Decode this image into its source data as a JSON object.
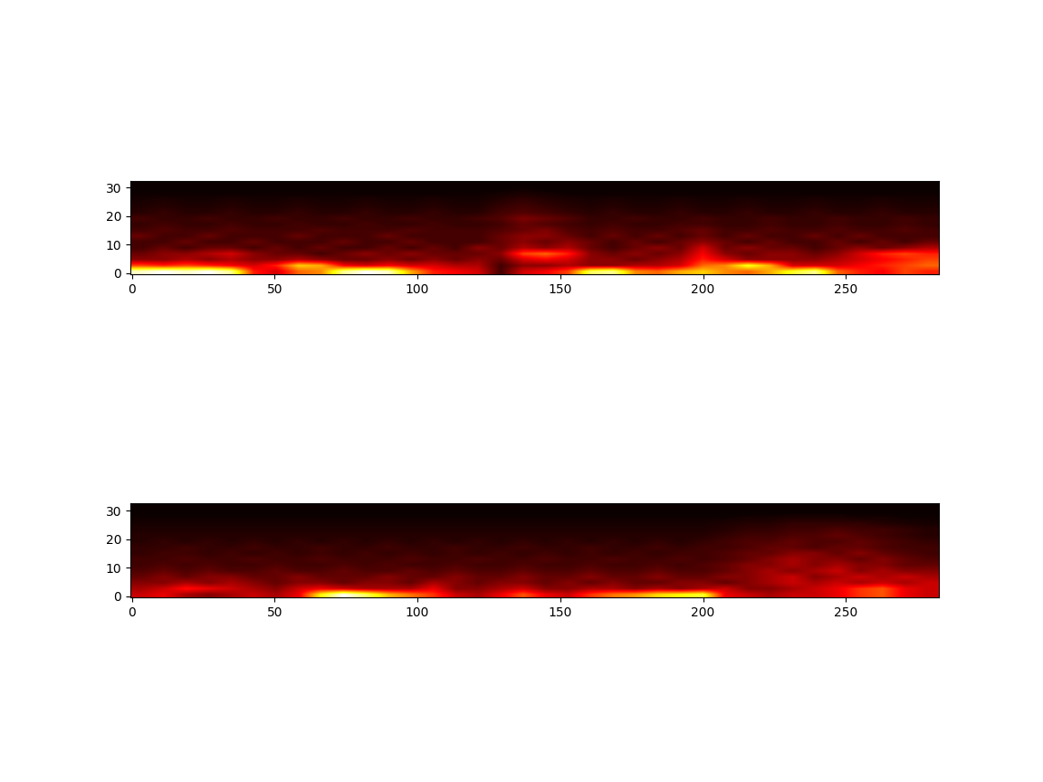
{
  "chart_data": [
    {
      "type": "heatmap",
      "color": "hot",
      "xlim": [
        -0.5,
        282.5
      ],
      "ylim": [
        -0.5,
        32.5
      ],
      "xticks": [
        0,
        50,
        100,
        150,
        200,
        250
      ],
      "yticks": [
        0,
        10,
        20,
        30
      ],
      "cells": [
        [
          0.9,
          0.95,
          0.9,
          0.95,
          0.85,
          0.4,
          0.3,
          0.5,
          0.55,
          0.85,
          0.95,
          0.9,
          0.6,
          0.4,
          0.35,
          0.3,
          0.1,
          0.3,
          0.35,
          0.45,
          0.8,
          0.85,
          0.55,
          0.5,
          0.6,
          0.65,
          0.55,
          0.5,
          0.6,
          0.75,
          0.85,
          0.5,
          0.4,
          0.35,
          0.45,
          0.4
        ],
        [
          0.45,
          0.4,
          0.45,
          0.4,
          0.35,
          0.3,
          0.4,
          0.65,
          0.6,
          0.35,
          0.3,
          0.35,
          0.3,
          0.3,
          0.25,
          0.25,
          0.1,
          0.2,
          0.2,
          0.25,
          0.2,
          0.2,
          0.25,
          0.25,
          0.3,
          0.5,
          0.55,
          0.75,
          0.6,
          0.3,
          0.3,
          0.3,
          0.35,
          0.4,
          0.45,
          0.5
        ],
        [
          0.2,
          0.2,
          0.25,
          0.2,
          0.25,
          0.2,
          0.2,
          0.25,
          0.2,
          0.15,
          0.15,
          0.2,
          0.15,
          0.2,
          0.15,
          0.2,
          0.15,
          0.3,
          0.35,
          0.3,
          0.2,
          0.2,
          0.15,
          0.2,
          0.25,
          0.4,
          0.3,
          0.2,
          0.2,
          0.2,
          0.2,
          0.25,
          0.3,
          0.35,
          0.4,
          0.45
        ],
        [
          0.15,
          0.2,
          0.2,
          0.25,
          0.3,
          0.2,
          0.15,
          0.15,
          0.1,
          0.15,
          0.2,
          0.15,
          0.2,
          0.15,
          0.15,
          0.15,
          0.2,
          0.45,
          0.5,
          0.4,
          0.2,
          0.15,
          0.2,
          0.15,
          0.2,
          0.35,
          0.2,
          0.15,
          0.2,
          0.2,
          0.15,
          0.2,
          0.3,
          0.4,
          0.45,
          0.4
        ],
        [
          0.1,
          0.15,
          0.1,
          0.15,
          0.15,
          0.1,
          0.15,
          0.1,
          0.15,
          0.1,
          0.1,
          0.15,
          0.1,
          0.15,
          0.1,
          0.2,
          0.15,
          0.25,
          0.2,
          0.25,
          0.15,
          0.1,
          0.15,
          0.2,
          0.15,
          0.3,
          0.15,
          0.2,
          0.15,
          0.15,
          0.1,
          0.15,
          0.2,
          0.15,
          0.2,
          0.25
        ],
        [
          0.1,
          0.1,
          0.15,
          0.1,
          0.1,
          0.15,
          0.1,
          0.1,
          0.1,
          0.15,
          0.1,
          0.1,
          0.15,
          0.1,
          0.1,
          0.1,
          0.15,
          0.2,
          0.15,
          0.2,
          0.15,
          0.1,
          0.15,
          0.1,
          0.15,
          0.2,
          0.15,
          0.1,
          0.15,
          0.1,
          0.1,
          0.15,
          0.1,
          0.15,
          0.1,
          0.15
        ],
        [
          0.15,
          0.1,
          0.1,
          0.15,
          0.1,
          0.1,
          0.1,
          0.15,
          0.1,
          0.1,
          0.1,
          0.15,
          0.1,
          0.1,
          0.1,
          0.1,
          0.15,
          0.2,
          0.2,
          0.15,
          0.1,
          0.15,
          0.1,
          0.15,
          0.1,
          0.15,
          0.1,
          0.15,
          0.1,
          0.1,
          0.15,
          0.1,
          0.15,
          0.1,
          0.1,
          0.1
        ],
        [
          0.1,
          0.12,
          0.1,
          0.1,
          0.12,
          0.1,
          0.1,
          0.1,
          0.12,
          0.1,
          0.1,
          0.1,
          0.12,
          0.1,
          0.1,
          0.1,
          0.12,
          0.15,
          0.18,
          0.12,
          0.1,
          0.12,
          0.1,
          0.1,
          0.12,
          0.15,
          0.1,
          0.1,
          0.12,
          0.1,
          0.1,
          0.12,
          0.1,
          0.1,
          0.12,
          0.1
        ],
        [
          0.08,
          0.1,
          0.08,
          0.08,
          0.1,
          0.08,
          0.08,
          0.1,
          0.08,
          0.08,
          0.1,
          0.08,
          0.08,
          0.1,
          0.08,
          0.08,
          0.1,
          0.15,
          0.12,
          0.1,
          0.08,
          0.1,
          0.08,
          0.08,
          0.1,
          0.1,
          0.08,
          0.08,
          0.1,
          0.08,
          0.08,
          0.1,
          0.08,
          0.08,
          0.1,
          0.08
        ],
        [
          0.1,
          0.08,
          0.08,
          0.1,
          0.08,
          0.08,
          0.1,
          0.08,
          0.08,
          0.1,
          0.08,
          0.08,
          0.1,
          0.08,
          0.08,
          0.1,
          0.12,
          0.18,
          0.15,
          0.12,
          0.08,
          0.08,
          0.1,
          0.08,
          0.08,
          0.1,
          0.08,
          0.08,
          0.1,
          0.08,
          0.08,
          0.1,
          0.08,
          0.08,
          0.1,
          0.08
        ],
        [
          0.06,
          0.08,
          0.06,
          0.06,
          0.08,
          0.06,
          0.06,
          0.08,
          0.06,
          0.06,
          0.08,
          0.06,
          0.06,
          0.08,
          0.06,
          0.06,
          0.1,
          0.12,
          0.1,
          0.08,
          0.06,
          0.08,
          0.06,
          0.06,
          0.08,
          0.06,
          0.06,
          0.08,
          0.06,
          0.06,
          0.08,
          0.06,
          0.06,
          0.08,
          0.06,
          0.06
        ],
        [
          0.05,
          0.06,
          0.05,
          0.05,
          0.06,
          0.05,
          0.05,
          0.06,
          0.05,
          0.05,
          0.06,
          0.05,
          0.05,
          0.06,
          0.05,
          0.05,
          0.08,
          0.1,
          0.08,
          0.06,
          0.05,
          0.06,
          0.05,
          0.05,
          0.06,
          0.05,
          0.05,
          0.06,
          0.05,
          0.05,
          0.06,
          0.05,
          0.05,
          0.06,
          0.05,
          0.05
        ],
        [
          0.04,
          0.05,
          0.04,
          0.04,
          0.05,
          0.04,
          0.04,
          0.05,
          0.04,
          0.04,
          0.05,
          0.04,
          0.04,
          0.05,
          0.04,
          0.04,
          0.06,
          0.08,
          0.06,
          0.05,
          0.04,
          0.05,
          0.04,
          0.04,
          0.05,
          0.04,
          0.04,
          0.05,
          0.04,
          0.04,
          0.05,
          0.04,
          0.04,
          0.05,
          0.04,
          0.04
        ],
        [
          0.03,
          0.03,
          0.03,
          0.03,
          0.03,
          0.03,
          0.03,
          0.03,
          0.03,
          0.03,
          0.03,
          0.03,
          0.03,
          0.03,
          0.03,
          0.03,
          0.04,
          0.05,
          0.04,
          0.03,
          0.03,
          0.03,
          0.03,
          0.03,
          0.03,
          0.03,
          0.03,
          0.03,
          0.03,
          0.03,
          0.03,
          0.03,
          0.03,
          0.03,
          0.03,
          0.03
        ],
        [
          0.02,
          0.02,
          0.02,
          0.02,
          0.02,
          0.02,
          0.02,
          0.02,
          0.02,
          0.02,
          0.02,
          0.02,
          0.02,
          0.02,
          0.02,
          0.02,
          0.02,
          0.03,
          0.02,
          0.02,
          0.02,
          0.02,
          0.02,
          0.02,
          0.02,
          0.02,
          0.02,
          0.02,
          0.02,
          0.02,
          0.02,
          0.02,
          0.02,
          0.02,
          0.02,
          0.02
        ],
        [
          0.02,
          0.02,
          0.02,
          0.02,
          0.02,
          0.02,
          0.02,
          0.02,
          0.02,
          0.02,
          0.02,
          0.02,
          0.02,
          0.02,
          0.02,
          0.02,
          0.02,
          0.02,
          0.02,
          0.02,
          0.02,
          0.02,
          0.02,
          0.02,
          0.02,
          0.02,
          0.02,
          0.02,
          0.02,
          0.02,
          0.02,
          0.02,
          0.02,
          0.02,
          0.02,
          0.02
        ]
      ]
    },
    {
      "type": "heatmap",
      "color": "hot",
      "xlim": [
        -0.5,
        282.5
      ],
      "ylim": [
        -0.5,
        32.5
      ],
      "xticks": [
        0,
        50,
        100,
        150,
        200,
        250
      ],
      "yticks": [
        0,
        10,
        20,
        30
      ],
      "cells": [
        [
          0.3,
          0.35,
          0.25,
          0.2,
          0.25,
          0.3,
          0.25,
          0.35,
          0.75,
          1.0,
          0.85,
          0.65,
          0.55,
          0.45,
          0.3,
          0.25,
          0.35,
          0.5,
          0.35,
          0.3,
          0.45,
          0.55,
          0.6,
          0.7,
          0.75,
          0.8,
          0.35,
          0.3,
          0.25,
          0.3,
          0.3,
          0.35,
          0.45,
          0.5,
          0.35,
          0.3
        ],
        [
          0.25,
          0.3,
          0.4,
          0.35,
          0.3,
          0.25,
          0.2,
          0.3,
          0.35,
          0.3,
          0.25,
          0.25,
          0.25,
          0.35,
          0.2,
          0.2,
          0.25,
          0.3,
          0.2,
          0.2,
          0.25,
          0.25,
          0.2,
          0.25,
          0.2,
          0.25,
          0.3,
          0.2,
          0.2,
          0.25,
          0.3,
          0.35,
          0.45,
          0.5,
          0.35,
          0.3
        ],
        [
          0.2,
          0.2,
          0.25,
          0.2,
          0.25,
          0.2,
          0.15,
          0.2,
          0.2,
          0.15,
          0.2,
          0.2,
          0.15,
          0.25,
          0.2,
          0.15,
          0.2,
          0.2,
          0.15,
          0.2,
          0.15,
          0.2,
          0.15,
          0.15,
          0.2,
          0.2,
          0.15,
          0.2,
          0.25,
          0.3,
          0.25,
          0.3,
          0.25,
          0.3,
          0.25,
          0.3
        ],
        [
          0.15,
          0.2,
          0.15,
          0.2,
          0.2,
          0.15,
          0.15,
          0.2,
          0.15,
          0.15,
          0.15,
          0.2,
          0.15,
          0.15,
          0.2,
          0.15,
          0.15,
          0.2,
          0.15,
          0.15,
          0.2,
          0.15,
          0.15,
          0.2,
          0.15,
          0.15,
          0.2,
          0.2,
          0.25,
          0.3,
          0.2,
          0.25,
          0.3,
          0.25,
          0.3,
          0.25
        ],
        [
          0.12,
          0.15,
          0.12,
          0.15,
          0.12,
          0.12,
          0.15,
          0.12,
          0.12,
          0.15,
          0.12,
          0.12,
          0.15,
          0.12,
          0.15,
          0.12,
          0.12,
          0.15,
          0.12,
          0.12,
          0.15,
          0.12,
          0.12,
          0.15,
          0.12,
          0.12,
          0.15,
          0.2,
          0.25,
          0.2,
          0.25,
          0.3,
          0.2,
          0.25,
          0.2,
          0.2
        ],
        [
          0.1,
          0.12,
          0.1,
          0.12,
          0.1,
          0.1,
          0.12,
          0.1,
          0.1,
          0.12,
          0.1,
          0.12,
          0.1,
          0.1,
          0.12,
          0.1,
          0.1,
          0.12,
          0.1,
          0.1,
          0.12,
          0.1,
          0.1,
          0.12,
          0.1,
          0.12,
          0.15,
          0.2,
          0.2,
          0.25,
          0.2,
          0.25,
          0.2,
          0.2,
          0.15,
          0.15
        ],
        [
          0.1,
          0.1,
          0.12,
          0.1,
          0.1,
          0.12,
          0.1,
          0.1,
          0.12,
          0.1,
          0.1,
          0.1,
          0.12,
          0.1,
          0.1,
          0.12,
          0.1,
          0.1,
          0.12,
          0.1,
          0.1,
          0.12,
          0.1,
          0.1,
          0.12,
          0.1,
          0.12,
          0.15,
          0.2,
          0.25,
          0.2,
          0.2,
          0.15,
          0.2,
          0.15,
          0.12
        ],
        [
          0.08,
          0.1,
          0.1,
          0.08,
          0.1,
          0.08,
          0.1,
          0.08,
          0.1,
          0.08,
          0.1,
          0.08,
          0.1,
          0.08,
          0.1,
          0.08,
          0.1,
          0.08,
          0.1,
          0.08,
          0.1,
          0.08,
          0.1,
          0.08,
          0.1,
          0.1,
          0.12,
          0.15,
          0.15,
          0.2,
          0.2,
          0.15,
          0.2,
          0.15,
          0.12,
          0.1
        ],
        [
          0.08,
          0.08,
          0.1,
          0.08,
          0.08,
          0.1,
          0.08,
          0.08,
          0.1,
          0.08,
          0.08,
          0.1,
          0.08,
          0.08,
          0.1,
          0.08,
          0.08,
          0.1,
          0.08,
          0.08,
          0.1,
          0.08,
          0.08,
          0.1,
          0.08,
          0.1,
          0.1,
          0.12,
          0.15,
          0.15,
          0.12,
          0.15,
          0.15,
          0.12,
          0.1,
          0.1
        ],
        [
          0.06,
          0.08,
          0.06,
          0.08,
          0.06,
          0.08,
          0.06,
          0.08,
          0.06,
          0.08,
          0.06,
          0.08,
          0.06,
          0.08,
          0.06,
          0.08,
          0.06,
          0.08,
          0.06,
          0.08,
          0.06,
          0.08,
          0.06,
          0.08,
          0.06,
          0.08,
          0.1,
          0.12,
          0.12,
          0.15,
          0.12,
          0.12,
          0.15,
          0.12,
          0.1,
          0.08
        ],
        [
          0.06,
          0.06,
          0.06,
          0.06,
          0.06,
          0.06,
          0.06,
          0.06,
          0.06,
          0.06,
          0.06,
          0.06,
          0.06,
          0.06,
          0.06,
          0.06,
          0.06,
          0.06,
          0.06,
          0.06,
          0.06,
          0.06,
          0.06,
          0.06,
          0.06,
          0.06,
          0.08,
          0.1,
          0.1,
          0.12,
          0.12,
          0.15,
          0.12,
          0.1,
          0.08,
          0.06
        ],
        [
          0.05,
          0.05,
          0.05,
          0.05,
          0.05,
          0.05,
          0.05,
          0.05,
          0.05,
          0.05,
          0.05,
          0.05,
          0.05,
          0.05,
          0.05,
          0.05,
          0.05,
          0.05,
          0.05,
          0.05,
          0.05,
          0.05,
          0.05,
          0.05,
          0.05,
          0.05,
          0.06,
          0.08,
          0.08,
          0.1,
          0.1,
          0.12,
          0.1,
          0.1,
          0.08,
          0.06
        ],
        [
          0.04,
          0.04,
          0.04,
          0.04,
          0.04,
          0.04,
          0.04,
          0.04,
          0.04,
          0.04,
          0.04,
          0.04,
          0.04,
          0.04,
          0.04,
          0.04,
          0.04,
          0.04,
          0.04,
          0.04,
          0.04,
          0.04,
          0.04,
          0.04,
          0.04,
          0.04,
          0.05,
          0.06,
          0.06,
          0.08,
          0.08,
          0.08,
          0.08,
          0.06,
          0.05,
          0.04
        ],
        [
          0.03,
          0.03,
          0.03,
          0.03,
          0.03,
          0.03,
          0.03,
          0.03,
          0.03,
          0.03,
          0.03,
          0.03,
          0.03,
          0.03,
          0.03,
          0.03,
          0.03,
          0.03,
          0.03,
          0.03,
          0.03,
          0.03,
          0.03,
          0.03,
          0.03,
          0.03,
          0.03,
          0.04,
          0.04,
          0.05,
          0.05,
          0.05,
          0.04,
          0.04,
          0.03,
          0.03
        ],
        [
          0.02,
          0.02,
          0.02,
          0.02,
          0.02,
          0.02,
          0.02,
          0.02,
          0.02,
          0.02,
          0.02,
          0.02,
          0.02,
          0.02,
          0.02,
          0.02,
          0.02,
          0.02,
          0.02,
          0.02,
          0.02,
          0.02,
          0.02,
          0.02,
          0.02,
          0.02,
          0.02,
          0.02,
          0.02,
          0.02,
          0.02,
          0.02,
          0.02,
          0.02,
          0.02,
          0.02
        ],
        [
          0.02,
          0.02,
          0.02,
          0.02,
          0.02,
          0.02,
          0.02,
          0.02,
          0.02,
          0.02,
          0.02,
          0.02,
          0.02,
          0.02,
          0.02,
          0.02,
          0.02,
          0.02,
          0.02,
          0.02,
          0.02,
          0.02,
          0.02,
          0.02,
          0.02,
          0.02,
          0.02,
          0.02,
          0.02,
          0.02,
          0.02,
          0.02,
          0.02,
          0.02,
          0.02,
          0.02
        ]
      ]
    }
  ]
}
